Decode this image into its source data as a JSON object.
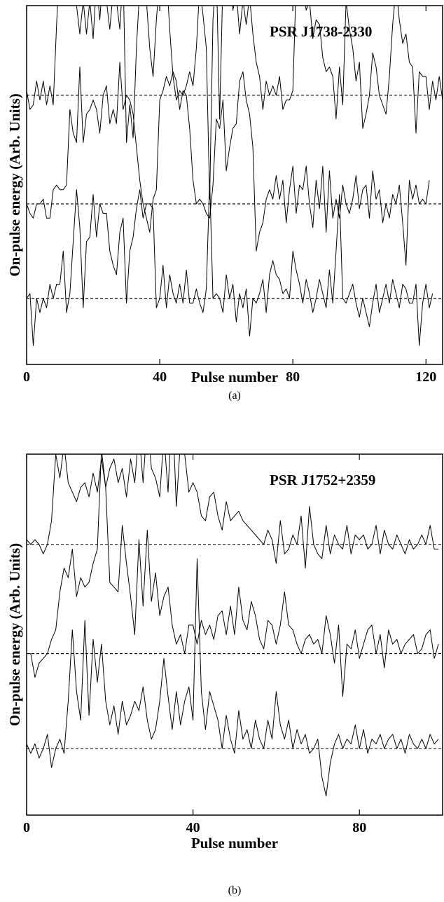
{
  "chart_data": [
    {
      "type": "line",
      "title": "PSR J1738-2330",
      "xlabel": "Pulse number",
      "ylabel": "On-pulse energy (Arb. Units)",
      "caption": "(a)",
      "xlim": [
        0,
        125
      ],
      "ylim": [
        -0.4,
        7.2
      ],
      "xticks": [
        0,
        40,
        80,
        120
      ],
      "baselines": "dashed",
      "series": [
        {
          "offset": 5.3,
          "values": [
            0.1,
            -0.3,
            -0.2,
            0.3,
            -0.1,
            0.3,
            -0.2,
            0.2,
            -0.2,
            1.5,
            2.9,
            2.5,
            2.0,
            2.0,
            2.5,
            1.9,
            1.3,
            2.0,
            1.3,
            2.0,
            1.2,
            2.4,
            1.6,
            2.6,
            2.0,
            1.4,
            2.2,
            2.0,
            1.4,
            2.6,
            -1.0,
            -0.2,
            -0.9,
            1.0,
            2.3,
            2.4,
            2.0,
            1.0,
            0.4,
            1.6,
            2.5,
            3.1,
            2.6,
            1.4,
            0.4,
            -0.1,
            0.1,
            0.0,
            0.2,
            0.5,
            0.2,
            1.0,
            2.3,
            1.7,
            1.0,
            -2.2,
            1.6,
            2.7,
            -0.5,
            2.5,
            2.0,
            3.6,
            1.8,
            2.2,
            1.3,
            2.0,
            1.5,
            2.1,
            1.3,
            0.7,
            0.4,
            -0.3,
            0.3,
            0.0,
            0.2,
            0.0,
            0.4,
            -0.3,
            -0.1,
            -0.1,
            0.1,
            2.4,
            2.1,
            2.4,
            1.8,
            2.0,
            1.2,
            1.6,
            1.5,
            0.8,
            0.5,
            0.6,
            0.4,
            -0.5,
            0.6,
            -0.2,
            2.0,
            1.4,
            1.0,
            0.3,
            0.7,
            -0.7,
            -0.4,
            0.0,
            0.9,
            0.6,
            0.0,
            -0.2,
            -0.4,
            0.4,
            1.5,
            2.3,
            1.6,
            1.1,
            1.3,
            0.7,
            0.6,
            -0.8,
            0.5,
            0.4,
            0.4,
            -0.3,
            0.3,
            -0.1,
            0.4,
            -0.1
          ]
        },
        {
          "offset": 3.0,
          "values": [
            0.0,
            -0.2,
            -0.3,
            0.0,
            0.0,
            0.1,
            -0.3,
            -0.3,
            0.3,
            0.4,
            0.3,
            0.3,
            0.4,
            2.0,
            1.5,
            1.3,
            2.9,
            1.3,
            1.9,
            2.0,
            2.2,
            2.0,
            1.5,
            2.3,
            2.5,
            1.7,
            2.0,
            1.7,
            3.0,
            2.0,
            2.3,
            2.2,
            1.9,
            1.2,
            0.5,
            0.0,
            -0.3,
            -0.6,
            0.1,
            0.3,
            2.2,
            2.4,
            2.7,
            2.5,
            2.8,
            2.6,
            2.0,
            2.4,
            2.3,
            1.6,
            0.5,
            0.0,
            0.1,
            0.0,
            -0.2,
            -0.3,
            0.4,
            1.8,
            1.6,
            2.2,
            0.7,
            1.2,
            1.6,
            1.7,
            2.6,
            2.8,
            2.2,
            1.9,
            1.2,
            -1.0,
            -0.6,
            -0.4,
            0.1,
            0.3,
            0.1,
            0.6,
            0.1,
            0.5,
            -0.4,
            0.3,
            0.8,
            -0.2,
            0.4,
            0.3,
            0.8,
            0.0,
            -0.5,
            0.5,
            -0.1,
            0.8,
            -0.6,
            0.7,
            -0.3,
            0.1,
            -0.3,
            0.4,
            0.0,
            -0.2,
            0.1,
            0.6,
            -0.1,
            0.3,
            0.4,
            -0.3,
            0.7,
            0.1,
            0.3,
            -0.4,
            0.0,
            -0.3,
            0.2,
            0.0,
            0.4,
            -0.4,
            -1.3,
            0.5,
            0.1,
            0.4,
            0.0,
            0.1,
            0.0,
            0.5
          ]
        },
        {
          "offset": 1.0,
          "values": [
            0.0,
            0.1,
            -1.0,
            0.0,
            -0.3,
            0.0,
            -0.2,
            0.3,
            0.0,
            0.3,
            0.3,
            1.0,
            -0.3,
            0.1,
            1.2,
            2.3,
            1.5,
            -0.2,
            1.2,
            1.3,
            2.2,
            1.3,
            2.0,
            1.8,
            1.8,
            1.0,
            0.7,
            0.5,
            1.4,
            1.7,
            -0.1,
            1.0,
            1.3,
            1.9,
            2.3,
            1.7,
            2.0,
            2.0,
            1.9,
            -0.2,
            0.0,
            0.7,
            -0.2,
            0.5,
            0.1,
            -0.1,
            0.3,
            -0.1,
            0.6,
            -0.1,
            -0.1,
            0.2,
            -0.1,
            -0.3,
            0.2,
            2.5,
            0.0,
            0.1,
            0.0,
            -0.3,
            0.5,
            0.0,
            0.3,
            -0.5,
            0.1,
            -0.2,
            0.2,
            -0.8,
            0.0,
            -0.1,
            0.1,
            0.4,
            -0.3,
            0.5,
            0.8,
            0.5,
            0.4,
            0.1,
            0.2,
            0.0,
            1.0,
            0.6,
            0.3,
            -0.1,
            0.4,
            0.1,
            -0.3,
            0.0,
            0.4,
            0.1,
            -0.2,
            0.6,
            -0.1,
            1.0,
            2.2,
            0.0,
            -0.1,
            0.1,
            0.3,
            -0.1,
            -0.4,
            0.0,
            -0.3,
            -0.6,
            -0.1,
            0.3,
            -0.3,
            0.0,
            0.3,
            -0.1,
            0.4,
            0.1,
            -0.2,
            0.3,
            0.2,
            -0.1,
            -0.1,
            0.3,
            -1.0,
            -0.1,
            0.3,
            -0.2,
            0.1
          ]
        }
      ]
    },
    {
      "type": "line",
      "title": "PSR J1752+2359",
      "xlabel": "Pulse number",
      "ylabel": "On-pulse energy (Arb. Units)",
      "caption": "(b)",
      "xlim": [
        0,
        100
      ],
      "ylim": [
        -0.4,
        7.2
      ],
      "xticks": [
        0,
        40,
        80
      ],
      "baselines": "dashed",
      "series": [
        {
          "offset": 5.3,
          "values": [
            0.1,
            0.0,
            0.1,
            0.0,
            -0.2,
            0.0,
            0.5,
            1.9,
            1.4,
            2.1,
            1.3,
            1.1,
            0.9,
            1.2,
            1.3,
            1.0,
            1.5,
            1.1,
            1.8,
            1.2,
            1.6,
            1.8,
            1.3,
            1.6,
            1.0,
            1.8,
            1.3,
            2.4,
            1.3,
            2.6,
            1.6,
            1.4,
            1.0,
            2.3,
            1.1,
            3.0,
            0.8,
            2.2,
            1.9,
            1.1,
            1.3,
            1.1,
            0.6,
            0.5,
            1.0,
            1.1,
            0.6,
            0.3,
            0.9,
            0.5,
            0.6,
            0.7,
            0.5,
            0.4,
            0.3,
            0.2,
            0.1,
            0.0,
            0.3,
            0.1,
            -0.4,
            0.5,
            -0.2,
            -0.1,
            0.2,
            0.0,
            0.6,
            -0.5,
            0.8,
            0.0,
            -0.2,
            -0.3,
            0.4,
            -0.2,
            0.2,
            0.0,
            -0.1,
            0.4,
            -0.2,
            0.2,
            0.1,
            0.2,
            -0.1,
            0.0,
            0.4,
            -0.2,
            0.3,
            0.0,
            -0.1,
            0.2,
            0.0,
            -0.2,
            0.1,
            -0.1,
            0.0,
            0.2,
            0.0,
            0.4,
            -0.1,
            -0.1
          ]
        },
        {
          "offset": 3.0,
          "values": [
            0.0,
            0.0,
            -0.5,
            -0.2,
            -0.1,
            0.0,
            0.3,
            0.5,
            1.3,
            1.8,
            1.6,
            2.2,
            1.2,
            1.6,
            1.4,
            1.5,
            1.9,
            2.2,
            4.3,
            3.5,
            1.5,
            1.4,
            1.3,
            2.7,
            1.9,
            1.2,
            0.4,
            2.4,
            1.0,
            2.6,
            1.1,
            1.7,
            0.8,
            1.2,
            1.4,
            0.6,
            0.2,
            0.4,
            0.0,
            0.6,
            0.6,
            0.2,
            0.7,
            0.4,
            0.6,
            0.3,
            0.8,
            0.9,
            0.4,
            1.0,
            0.4,
            1.4,
            0.7,
            0.5,
            1.1,
            0.8,
            0.3,
            0.1,
            0.7,
            0.6,
            0.2,
            0.6,
            1.3,
            0.6,
            0.5,
            0.2,
            0.0,
            0.3,
            0.4,
            0.2,
            0.3,
            0.0,
            0.8,
            0.4,
            -0.2,
            0.6,
            -0.9,
            0.2,
            0.1,
            0.5,
            -0.1,
            0.2,
            0.5,
            0.6,
            0.0,
            0.4,
            -0.3,
            0.5,
            0.2,
            0.3,
            0.0,
            0.2,
            0.3,
            0.4,
            0.0,
            0.1,
            0.4,
            0.5,
            -0.1,
            0.2
          ]
        },
        {
          "offset": 1.0,
          "values": [
            0.1,
            -0.1,
            0.1,
            -0.2,
            0.0,
            0.3,
            -0.4,
            0.0,
            0.2,
            -0.1,
            1.0,
            2.5,
            1.2,
            0.6,
            2.7,
            0.7,
            2.3,
            1.4,
            2.2,
            1.0,
            0.5,
            0.9,
            0.3,
            1.0,
            0.5,
            0.7,
            1.0,
            0.8,
            1.3,
            0.6,
            0.2,
            0.4,
            1.0,
            1.9,
            1.1,
            0.4,
            1.2,
            0.5,
            1.0,
            1.3,
            0.6,
            4.0,
            1.2,
            0.4,
            1.2,
            0.9,
            0.6,
            0.0,
            0.7,
            0.2,
            -0.1,
            0.8,
            0.2,
            0.4,
            0.0,
            0.6,
            0.2,
            0.0,
            0.6,
            0.2,
            1.2,
            0.5,
            0.2,
            0.6,
            0.0,
            0.4,
            0.1,
            0.3,
            -0.1,
            0.0,
            0.2,
            -0.6,
            -1.0,
            -0.3,
            0.1,
            0.3,
            0.0,
            0.2,
            0.1,
            0.5,
            0.0,
            0.4,
            -0.1,
            0.2,
            0.1,
            0.3,
            0.0,
            0.2,
            0.3,
            0.0,
            0.2,
            -0.1,
            0.3,
            0.1,
            0.0,
            0.2,
            0.0,
            0.3,
            0.1,
            0.2
          ]
        }
      ]
    }
  ]
}
